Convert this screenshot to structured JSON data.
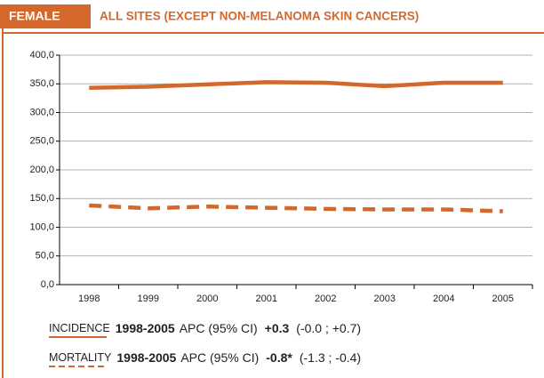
{
  "chart_data": {
    "type": "line",
    "label": "FEMALE",
    "title": "ALL SITES (EXCEPT NON-MELANOMA SKIN CANCERS)",
    "categories": [
      "1998",
      "1999",
      "2000",
      "2001",
      "2002",
      "2003",
      "2004",
      "2005"
    ],
    "series": [
      {
        "name": "INCIDENCE",
        "color": "#d4682c",
        "line_style": "solid",
        "period": "1998-2005",
        "apc_label": "APC (95% CI)",
        "apc": "+0.3",
        "ci": "(-0.0 ; +0.7)",
        "values": [
          343,
          345,
          349,
          353,
          352,
          346,
          352,
          352
        ]
      },
      {
        "name": "MORTALITY",
        "color": "#d4682c",
        "line_style": "dashed",
        "period": "1998-2005",
        "apc_label": "APC (95% CI)",
        "apc": "-0.8*",
        "ci": "(-1.3 ; -0.4)",
        "values": [
          138,
          133,
          136,
          134,
          132,
          131,
          131,
          128
        ]
      }
    ],
    "ylim": [
      0,
      400
    ],
    "yticks": [
      {
        "value": 0,
        "label": "0,0"
      },
      {
        "value": 50,
        "label": "50,0"
      },
      {
        "value": 100,
        "label": "100,0"
      },
      {
        "value": 150,
        "label": "150,0"
      },
      {
        "value": 200,
        "label": "200,0"
      },
      {
        "value": 250,
        "label": "250,0"
      },
      {
        "value": 300,
        "label": "300,0"
      },
      {
        "value": 350,
        "label": "350,0"
      },
      {
        "value": 400,
        "label": "400,0"
      }
    ],
    "grid": true
  }
}
